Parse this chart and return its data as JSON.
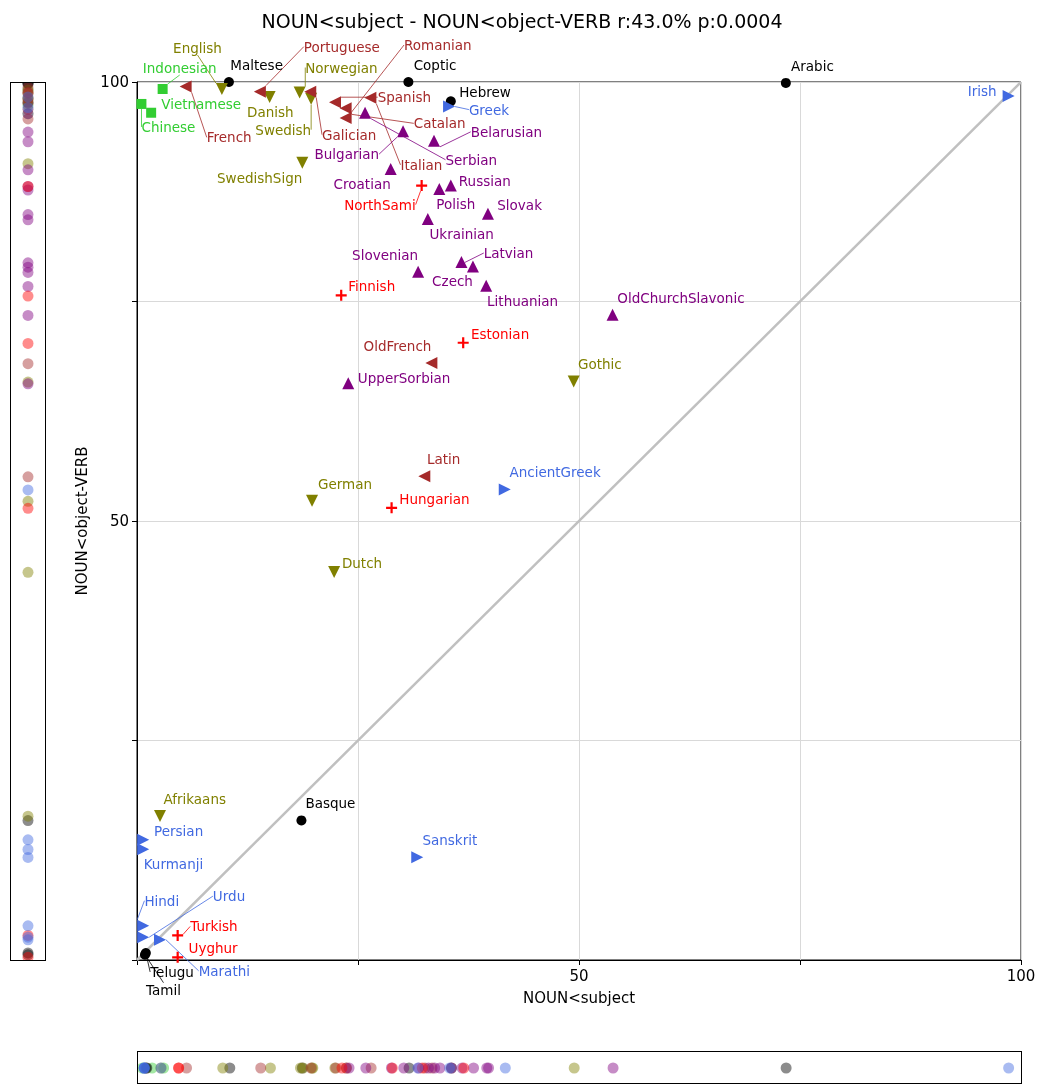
{
  "chart_data": {
    "type": "scatter",
    "title": "NOUN<subject - NOUN<object-VERB r:43.0% p:0.0004",
    "xlabel": "NOUN<subject",
    "ylabel": "NOUN<object-VERB",
    "xlim": [
      0,
      100
    ],
    "ylim": [
      0,
      100
    ],
    "xticks": [
      {
        "value": 0,
        "label": null
      },
      {
        "value": 25,
        "label": null
      },
      50,
      {
        "value": 75,
        "label": null
      },
      100
    ],
    "yticks": [
      {
        "value": 0,
        "label": null
      },
      {
        "value": 25,
        "label": null
      },
      50,
      {
        "value": 75,
        "label": null
      },
      100
    ],
    "grid": true,
    "series": [
      {
        "type": "line",
        "color": "#c0c0c0",
        "marker": "none",
        "x": [
          0,
          100
        ],
        "values": [
          0,
          100
        ]
      },
      {
        "color": "#32cd32",
        "marker": "square",
        "x": [
          0.5,
          1.6,
          2.9
        ],
        "values": [
          97.5,
          96.5,
          99.2
        ],
        "value_labels": [
          "Chinese",
          "Vietnamese",
          "Indonesian"
        ]
      },
      {
        "color": "#000000",
        "marker": "circle",
        "x": [
          10.4,
          30.7,
          35.5,
          73.4,
          18.6,
          1.0,
          0.9
        ],
        "values": [
          100,
          100,
          97.8,
          99.9,
          15.9,
          0.8,
          0.6
        ],
        "value_labels": [
          "Maltese",
          "Coptic",
          "Hebrew",
          "Arabic",
          "Basque",
          "Telugu",
          "Tamil"
        ]
      },
      {
        "color": "#808000",
        "marker": "triangle-down",
        "x": [
          9.6,
          15.0,
          18.4,
          19.7,
          18.7,
          19.8,
          22.3,
          49.4,
          2.6
        ],
        "values": [
          99.2,
          98.3,
          98.8,
          98.1,
          90.8,
          52.3,
          44.2,
          65.9,
          16.4
        ],
        "value_labels": [
          "English",
          "Danish",
          "Norwegian",
          "Swedish",
          "SwedishSign",
          "German",
          "Dutch",
          "Gothic",
          "Afrikaans"
        ]
      },
      {
        "color": "#a52a2a",
        "marker": "triangle-left",
        "x": [
          5.5,
          13.9,
          19.6,
          22.4,
          23.6,
          23.6,
          26.4,
          33.3,
          32.5
        ],
        "values": [
          99.5,
          98.9,
          98.9,
          97.7,
          97.0,
          95.9,
          98.2,
          68.0,
          55.1
        ],
        "value_labels": [
          "French",
          "Portuguese",
          "Galician",
          "Spanish",
          "Catalan",
          "Romanian",
          "Italian",
          "OldFrench",
          "Latin"
        ]
      },
      {
        "color": "#800080",
        "marker": "triangle",
        "x": [
          25.8,
          30.1,
          33.6,
          28.7,
          35.5,
          34.2,
          32.9,
          39.7,
          31.8,
          36.7,
          38.0,
          39.5,
          53.8,
          23.9
        ],
        "values": [
          96.5,
          94.4,
          93.3,
          90.1,
          88.2,
          87.8,
          84.4,
          85.0,
          78.4,
          79.5,
          79.0,
          76.8,
          73.5,
          65.7
        ],
        "value_labels": [
          "Serbian",
          "Bulgarian",
          "Belarusian",
          "Croatian",
          "Russian",
          "Polish",
          "Ukrainian",
          "Slovak",
          "Slovenian",
          "Latvian",
          "Czech",
          "Lithuanian",
          "OldChurchSlavonic",
          "UpperSorbian"
        ]
      },
      {
        "color": "#ff0000",
        "marker": "cross",
        "x": [
          32.2,
          23.1,
          36.9,
          28.8,
          4.6,
          4.6
        ],
        "values": [
          88.2,
          75.7,
          70.3,
          51.5,
          2.8,
          0.3
        ],
        "value_labels": [
          "NorthSami",
          "Finnish",
          "Estonian",
          "Hungarian",
          "Turkish",
          "Uyghur"
        ]
      },
      {
        "color": "#4169e1",
        "marker": "triangle-right",
        "x": [
          35.3,
          98.6,
          41.6,
          0.7,
          0.7,
          31.7,
          0.7,
          0.7,
          2.6
        ],
        "values": [
          97.2,
          98.4,
          53.6,
          13.7,
          12.6,
          11.7,
          3.9,
          2.6,
          2.3
        ],
        "value_labels": [
          "Greek",
          "Irish",
          "AncientGreek",
          "Persian",
          "Kurmanji",
          "Sanskrit",
          "Hindi",
          "Urdu",
          "Marathi"
        ]
      }
    ]
  }
}
